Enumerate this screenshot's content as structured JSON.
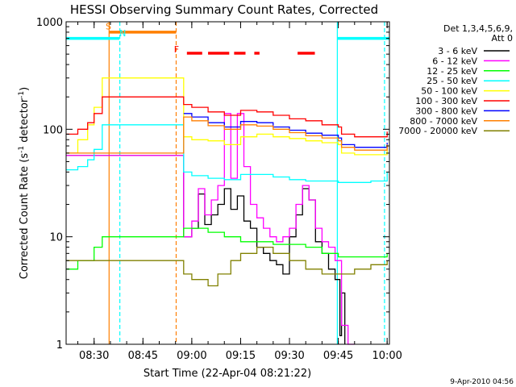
{
  "chart_data": {
    "type": "line",
    "title": "HESSI Observing Summary Count Rates, Corrected",
    "xlabel": "Start Time (22-Apr-04 08:21:22)",
    "ylabel_main": "Corrected Count Rate (s",
    "ylabel_exp1": "-1",
    "ylabel_mid": " detector",
    "ylabel_exp2": "-1",
    "ylabel_end": ")",
    "footer": "9-Apr-2010 04:56",
    "x_unit": "minutes after 08:00",
    "xlim": [
      21.4,
      120.7
    ],
    "ylim": [
      1,
      1000
    ],
    "y_scale": "log",
    "x_ticks": [
      {
        "x": 30,
        "label": "08:30"
      },
      {
        "x": 45,
        "label": "08:45"
      },
      {
        "x": 60,
        "label": "09:00"
      },
      {
        "x": 75,
        "label": "09:15"
      },
      {
        "x": 90,
        "label": "09:30"
      },
      {
        "x": 105,
        "label": "09:45"
      },
      {
        "x": 120,
        "label": "10:00"
      }
    ],
    "y_ticks": [
      {
        "y": 1,
        "label": "1"
      },
      {
        "y": 10,
        "label": "10"
      },
      {
        "y": 100,
        "label": "100"
      },
      {
        "y": 1000,
        "label": "1000"
      }
    ],
    "legend": {
      "position": "right",
      "header_1": "Det 1,3,4,5,6,9,",
      "header_2": "Att 0"
    },
    "series": [
      {
        "name": "3 - 6 keV",
        "color": "#000000",
        "x": [
          21.4,
          32.5,
          57.5,
          60,
          62,
          64,
          66,
          68,
          70,
          72,
          74,
          76,
          78,
          80,
          82,
          84,
          86,
          88,
          90,
          92,
          94,
          96,
          98,
          100,
          102,
          104,
          105.5,
          106,
          107
        ],
        "y": [
          57,
          57,
          10,
          12,
          25,
          13,
          16,
          20,
          28,
          18,
          24,
          14,
          12,
          8,
          7,
          6,
          5.5,
          4.5,
          10,
          16,
          28,
          22,
          9,
          7,
          5,
          4,
          1.2,
          3,
          1
        ]
      },
      {
        "name": "6 - 12 keV",
        "color": "#ff00ff",
        "x": [
          21.4,
          32.5,
          57.5,
          60,
          62,
          64,
          66,
          68,
          70,
          72,
          74,
          76,
          78,
          80,
          82,
          84,
          86,
          88,
          90,
          92,
          94,
          96,
          98,
          100,
          102,
          104,
          106,
          108,
          110
        ],
        "y": [
          57,
          57,
          10,
          14,
          28,
          16,
          22,
          30,
          140,
          35,
          140,
          45,
          20,
          15,
          12,
          10,
          9,
          10,
          12,
          20,
          30,
          22,
          12,
          9,
          8,
          6,
          1.5,
          1,
          1
        ]
      },
      {
        "name": "12 - 25 keV",
        "color": "#00ff00",
        "x": [
          21.4,
          25,
          30,
          32.5,
          57.5,
          60,
          65,
          70,
          75,
          80,
          85,
          90,
          95,
          100,
          105,
          110,
          115,
          120
        ],
        "y": [
          5,
          6,
          8,
          10,
          12,
          12,
          11,
          10,
          9,
          9,
          8.5,
          8.5,
          8,
          7,
          6.5,
          6.5,
          6.5,
          7
        ]
      },
      {
        "name": "25 - 50 keV",
        "color": "#00ffff",
        "x": [
          21.4,
          25,
          28,
          30,
          32.5,
          57.5,
          60,
          65,
          70,
          75,
          80,
          85,
          90,
          95,
          100,
          105,
          110,
          115,
          120
        ],
        "y": [
          42,
          45,
          52,
          65,
          110,
          40,
          37,
          35,
          34,
          38,
          38,
          36,
          34,
          33,
          33,
          32,
          32,
          33,
          40
        ]
      },
      {
        "name": "50 - 100 keV",
        "color": "#ffff00",
        "x": [
          21.4,
          25,
          28,
          30,
          32.5,
          57.5,
          60,
          65,
          70,
          75,
          80,
          85,
          90,
          95,
          100,
          105,
          106,
          110,
          115,
          120
        ],
        "y": [
          60,
          80,
          110,
          160,
          300,
          85,
          80,
          78,
          72,
          85,
          90,
          85,
          82,
          78,
          75,
          72,
          60,
          58,
          58,
          70
        ]
      },
      {
        "name": "100 - 300 keV",
        "color": "#ff0000",
        "x": [
          21.4,
          25,
          28,
          30,
          32.5,
          57.5,
          60,
          65,
          70,
          75,
          80,
          85,
          90,
          95,
          100,
          105,
          106,
          110,
          115,
          120
        ],
        "y": [
          90,
          100,
          115,
          140,
          200,
          170,
          160,
          145,
          135,
          150,
          145,
          135,
          125,
          120,
          110,
          105,
          90,
          85,
          85,
          95
        ]
      },
      {
        "name": "300 - 800 keV",
        "color": "#0000ff",
        "x": [
          57.5,
          60,
          65,
          70,
          75,
          80,
          85,
          90,
          95,
          100,
          105,
          106,
          110,
          115,
          120
        ],
        "y": [
          140,
          130,
          115,
          105,
          118,
          115,
          105,
          98,
          92,
          88,
          83,
          72,
          68,
          68,
          75
        ]
      },
      {
        "name": "800 - 7000 keV",
        "color": "#ff7f00",
        "x": [
          21.4,
          25,
          28,
          30,
          32.5,
          57.5,
          60,
          65,
          70,
          75,
          80,
          85,
          90,
          95,
          100,
          105,
          106,
          110,
          115,
          120
        ],
        "y": [
          60,
          60,
          60,
          60,
          60,
          130,
          120,
          108,
          100,
          110,
          107,
          100,
          93,
          87,
          83,
          78,
          68,
          64,
          64,
          72
        ]
      },
      {
        "name": "7000 - 20000 keV",
        "color": "#808000",
        "x": [
          21.4,
          25,
          30,
          32.5,
          57.5,
          60,
          65,
          68,
          72,
          75,
          80,
          85,
          90,
          95,
          100,
          105,
          110,
          115,
          120
        ],
        "y": [
          6,
          6,
          6,
          6,
          4.5,
          4,
          3.5,
          4.5,
          6,
          7,
          8,
          7,
          6,
          5,
          4.5,
          4.5,
          5,
          5.5,
          6
        ]
      }
    ],
    "status_bars": [
      {
        "label": "",
        "color": "#00ffff",
        "x0": 21.4,
        "x1": 37.8,
        "y": 700
      },
      {
        "label": "",
        "color": "#00ffff",
        "x0": 104.6,
        "x1": 120.7,
        "y": 700
      },
      {
        "label": "",
        "color": "#ff7f00",
        "x0": 34.5,
        "x1": 55.2,
        "y": 800
      },
      {
        "label": "",
        "color": "#ff0000",
        "x0": 58.5,
        "x1": 63.2,
        "y": 510
      },
      {
        "label": "",
        "color": "#ff0000",
        "x0": 65,
        "x1": 71.5,
        "y": 510
      },
      {
        "label": "",
        "color": "#ff0000",
        "x0": 73,
        "x1": 76.5,
        "y": 510
      },
      {
        "label": "",
        "color": "#ff0000",
        "x0": 79.2,
        "x1": 80.8,
        "y": 510
      },
      {
        "label": "",
        "color": "#ff0000",
        "x0": 92.5,
        "x1": 97.8,
        "y": 510
      }
    ],
    "markers": [
      {
        "label": "S",
        "color": "#ff7f00",
        "x": 34.4,
        "y": 850
      },
      {
        "label": "N",
        "color": "#00ffff",
        "x": 38.8,
        "y": 730
      },
      {
        "label": "F",
        "color": "#ff0000",
        "x": 55.3,
        "y": 520
      }
    ],
    "vlines": [
      {
        "x": 34.6,
        "color": "#ff7f00",
        "dashed": false
      },
      {
        "x": 37.9,
        "color": "#00ffff",
        "dashed": true
      },
      {
        "x": 55.2,
        "color": "#ff7f00",
        "dashed": true
      },
      {
        "x": 104.7,
        "color": "#00ffff",
        "dashed": false
      },
      {
        "x": 119.2,
        "color": "#00ffff",
        "dashed": true
      }
    ]
  }
}
